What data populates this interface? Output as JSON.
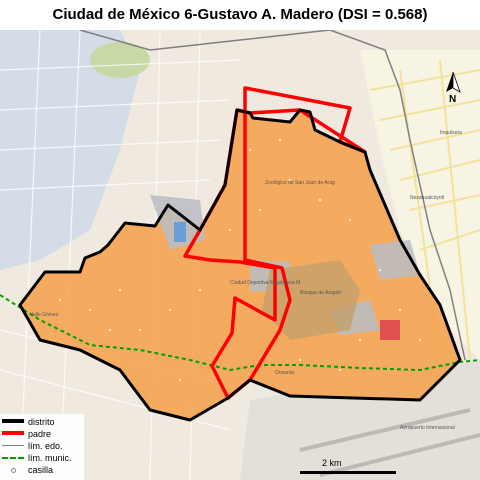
{
  "title": "Ciudad de México 6-Gustavo A. Madero (DSI = 0.568)",
  "compass": {
    "label": "N"
  },
  "scale": {
    "label": "2 km"
  },
  "legend": {
    "items": [
      {
        "label": "distrito",
        "color": "#000000",
        "style": "thick"
      },
      {
        "label": "padre",
        "color": "#ff0000",
        "style": "thick"
      },
      {
        "label": "lím. edo.",
        "color": "#808080",
        "style": "thin"
      },
      {
        "label": "lím. munic.",
        "color": "#00a000",
        "style": "dashed"
      },
      {
        "label": "casilla",
        "color": "#ffffff",
        "style": "dot"
      }
    ]
  },
  "map_labels": [
    {
      "text": "Valle Gómez"
    },
    {
      "text": "Ciudad Deportiva Magdalena Mixiuhca"
    },
    {
      "text": "Aeropuerto Internacional"
    },
    {
      "text": "Oceanía"
    },
    {
      "text": "Nezahualcóyotl"
    },
    {
      "text": "Impulsora"
    },
    {
      "text": "Bosque de Aragón"
    },
    {
      "text": "Zoológico de San Juan de Aragón"
    }
  ],
  "colors": {
    "district_fill": "#f5a04a",
    "district_border": "#000000",
    "parent_border": "#ff0000",
    "base_map": "#f2efe9",
    "urban_blue": "#b8cde8",
    "park": "#c8d8a6"
  }
}
